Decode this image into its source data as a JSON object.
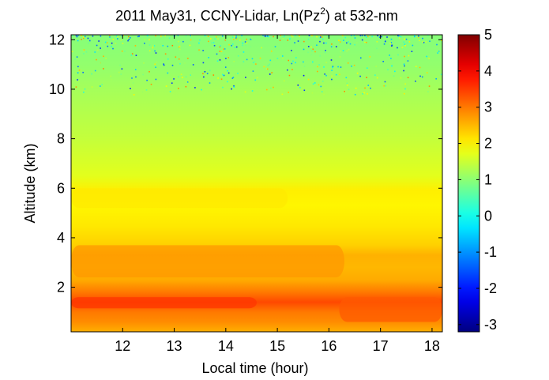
{
  "chart_data": {
    "type": "heatmap",
    "title": "2011 May31, CCNY-Lidar, Ln(Pz",
    "title_superscript": "2",
    "title_suffix": ") at 532-nm",
    "xlabel": "Local time (hour)",
    "ylabel": "Altitude (km)",
    "xlim": [
      11.0,
      18.2
    ],
    "ylim": [
      0.2,
      12.2
    ],
    "x_ticks": [
      12,
      13,
      14,
      15,
      16,
      17,
      18
    ],
    "x_tick_labels": [
      "12",
      "13",
      "14",
      "15",
      "16",
      "17",
      "18"
    ],
    "y_ticks": [
      2,
      4,
      6,
      8,
      10,
      12
    ],
    "y_tick_labels": [
      "2",
      "4",
      "6",
      "8",
      "10",
      "12"
    ],
    "colorbar": {
      "colormap": "jet",
      "clim": [
        -3.2,
        5
      ],
      "ticks": [
        -3,
        -2,
        -1,
        0,
        1,
        2,
        3,
        4,
        5
      ],
      "tick_labels": [
        "-3",
        "-2",
        "-1",
        "0",
        "1",
        "2",
        "3",
        "4",
        "5"
      ]
    },
    "altitude_profile": [
      {
        "altitude": 0.25,
        "value": 2.6
      },
      {
        "altitude": 0.6,
        "value": 2.85
      },
      {
        "altitude": 1.0,
        "value": 3.0
      },
      {
        "altitude": 1.4,
        "value": 3.4
      },
      {
        "altitude": 1.8,
        "value": 3.0
      },
      {
        "altitude": 2.3,
        "value": 2.6
      },
      {
        "altitude": 2.8,
        "value": 2.5
      },
      {
        "altitude": 3.3,
        "value": 2.55
      },
      {
        "altitude": 3.7,
        "value": 2.3
      },
      {
        "altitude": 4.5,
        "value": 2.1
      },
      {
        "altitude": 5.3,
        "value": 2.0
      },
      {
        "altitude": 5.9,
        "value": 2.05
      },
      {
        "altitude": 6.5,
        "value": 1.7
      },
      {
        "altitude": 8.0,
        "value": 1.45
      },
      {
        "altitude": 10.0,
        "value": 1.2
      },
      {
        "altitude": 11.0,
        "value": 1.05
      },
      {
        "altitude": 12.2,
        "value": 0.95
      }
    ],
    "layers": [
      {
        "time_start": 11.0,
        "time_end": 16.3,
        "alt_bottom": 2.4,
        "alt_top": 3.7,
        "value": 2.75
      },
      {
        "time_start": 11.0,
        "time_end": 15.2,
        "alt_bottom": 5.2,
        "alt_top": 6.0,
        "value": 2.1
      },
      {
        "time_start": 11.0,
        "time_end": 14.6,
        "alt_bottom": 1.15,
        "alt_top": 1.6,
        "value": 3.55
      },
      {
        "time_start": 16.2,
        "time_end": 18.2,
        "alt_bottom": 0.6,
        "alt_top": 1.6,
        "value": 3.25
      }
    ],
    "noise_region": {
      "alt_bottom": 9.8,
      "alt_top": 12.2,
      "value_min": -2,
      "value_max": 3
    }
  }
}
